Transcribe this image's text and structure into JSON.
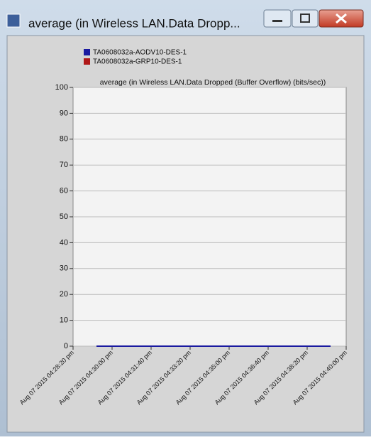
{
  "window": {
    "title": "average (in Wireless LAN.Data Dropp..."
  },
  "chart_data": {
    "type": "line",
    "y_label": "average (in Wireless LAN.Data Dropped (Buffer Overflow) (bits/sec))",
    "x": [
      "Aug 07 2015 04:29:20 pm",
      "Aug 07 2015 04:39:20 pm"
    ],
    "series": [
      {
        "name": "TA0608032a-AODV10-DES-1",
        "color": "#1a1aa0",
        "values": [
          0,
          0
        ]
      },
      {
        "name": "TA0608032a-GRP10-DES-1",
        "color": "#b01818",
        "values": [
          0,
          0
        ]
      }
    ],
    "xlim": [
      "Aug 07 2015 04:28:20 pm",
      "Aug 07 2015 04:40:00 pm"
    ],
    "xticks": [
      "Aug 07 2015 04:28:20 pm",
      "Aug 07 2015 04:30:00 pm",
      "Aug 07 2015 04:31:40 pm",
      "Aug 07 2015 04:33:20 pm",
      "Aug 07 2015 04:35:00 pm",
      "Aug 07 2015 04:36:40 pm",
      "Aug 07 2015 04:38:20 pm",
      "Aug 07 2015 04:40:00 pm"
    ],
    "ylim": [
      0,
      100
    ],
    "yticks": [
      0,
      10,
      20,
      30,
      40,
      50,
      60,
      70,
      80,
      90,
      100
    ],
    "grid": true
  }
}
